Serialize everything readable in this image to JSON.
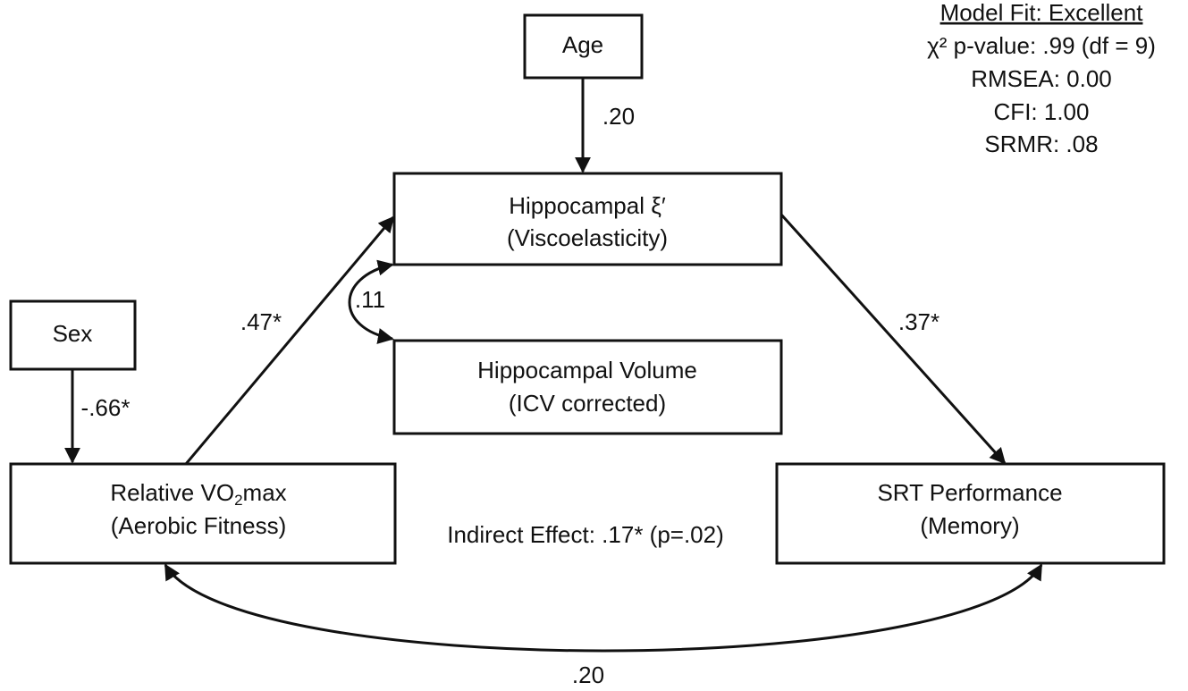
{
  "fit": {
    "title": "Model Fit: Excellent",
    "lines": [
      "χ² p-value: .99 (df = 9)",
      "RMSEA: 0.00",
      "CFI: 1.00",
      "SRMR: .08"
    ]
  },
  "nodes": [
    {
      "lines": [
        "Age"
      ]
    },
    {
      "lines": [
        "Hippocampal ξ′",
        "(Viscoelasticity)"
      ]
    },
    {
      "lines": [
        "Hippocampal Volume",
        "(ICV corrected)"
      ]
    },
    {
      "lines": [
        "Sex"
      ]
    },
    {
      "lines": [
        [
          "Relative VO",
          "2",
          "max"
        ],
        "(Aerobic Fitness)"
      ]
    },
    {
      "lines": [
        "SRT Performance",
        "(Memory)"
      ]
    }
  ],
  "edges": [
    ".20",
    ".47*",
    ".11",
    ".37*",
    "-.66*",
    ".20"
  ],
  "indirect": "Indirect Effect: .17* (p=.02)"
}
